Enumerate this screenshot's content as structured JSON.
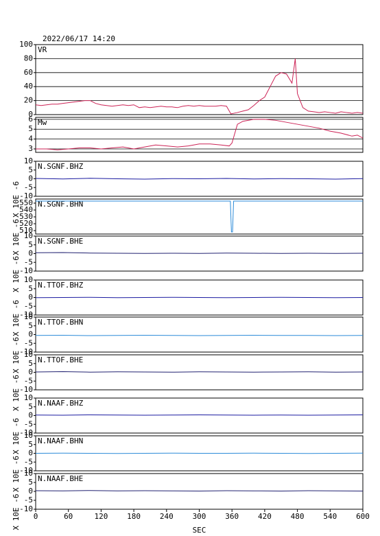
{
  "chart_data": [
    {
      "type": "line",
      "title": "2022/06/17 14:20",
      "xlim": [
        0,
        600
      ],
      "ylim": [
        0,
        100
      ],
      "yticks": [
        0,
        20,
        40,
        60,
        80,
        100
      ],
      "grid": true,
      "x": [
        0,
        10,
        20,
        30,
        40,
        50,
        60,
        70,
        80,
        90,
        100,
        110,
        120,
        130,
        140,
        150,
        160,
        170,
        180,
        190,
        200,
        210,
        220,
        230,
        240,
        250,
        260,
        270,
        280,
        290,
        300,
        310,
        320,
        330,
        340,
        350,
        358,
        370,
        380,
        390,
        400,
        410,
        420,
        430,
        440,
        450,
        460,
        470,
        476,
        480,
        490,
        500,
        510,
        520,
        530,
        540,
        550,
        560,
        570,
        580,
        590,
        600
      ],
      "series": [
        {
          "name": "VR",
          "color": "#cc2255",
          "values": [
            14,
            13,
            14,
            15,
            15,
            16,
            17,
            18,
            19,
            20,
            20,
            16,
            14,
            13,
            12,
            13,
            14,
            13,
            14,
            10,
            11,
            10,
            11,
            12,
            11,
            11,
            10,
            12,
            13,
            12,
            13,
            12,
            12,
            12,
            13,
            12,
            1,
            3,
            5,
            7,
            13,
            20,
            25,
            40,
            55,
            60,
            58,
            45,
            80,
            30,
            10,
            5,
            4,
            3,
            4,
            3,
            2,
            4,
            3,
            2,
            3,
            2
          ]
        }
      ]
    },
    {
      "type": "line",
      "xlim": [
        0,
        600
      ],
      "ylim": [
        2.65,
        6.2
      ],
      "yticks": [
        3,
        4,
        5,
        6
      ],
      "grid": true,
      "x": [
        0,
        20,
        40,
        60,
        80,
        100,
        120,
        140,
        160,
        180,
        200,
        220,
        240,
        260,
        280,
        300,
        320,
        340,
        355,
        360,
        370,
        380,
        400,
        420,
        440,
        460,
        480,
        500,
        520,
        540,
        560,
        580,
        590,
        600
      ],
      "series": [
        {
          "name": "Mw",
          "color": "#cc2255",
          "values": [
            3.0,
            3.0,
            2.9,
            3.0,
            3.1,
            3.1,
            3.0,
            3.1,
            3.2,
            3.0,
            3.2,
            3.4,
            3.3,
            3.2,
            3.3,
            3.5,
            3.5,
            3.4,
            3.3,
            3.6,
            5.5,
            5.8,
            6.0,
            6.0,
            5.9,
            5.7,
            5.5,
            5.3,
            5.1,
            4.8,
            4.6,
            4.3,
            4.4,
            4.1
          ]
        }
      ]
    },
    {
      "type": "line",
      "xlim": [
        0,
        600
      ],
      "ylim": [
        -10,
        10
      ],
      "yticks": [
        -10,
        -5,
        0,
        5,
        10
      ],
      "ylabel": "X 10E -6",
      "x": [
        0,
        50,
        100,
        150,
        200,
        250,
        300,
        350,
        400,
        450,
        500,
        550,
        600
      ],
      "series": [
        {
          "name": "N.SGNF.BHZ",
          "color": "#1a1aa0",
          "values": [
            0.2,
            -0.1,
            0.3,
            0,
            -0.2,
            0.1,
            0,
            0.2,
            -0.1,
            0.1,
            0,
            -0.2,
            0.1
          ]
        }
      ]
    },
    {
      "type": "line",
      "xlim": [
        0,
        600
      ],
      "ylim": [
        505,
        556
      ],
      "yticks": [
        510,
        520,
        530,
        540,
        550
      ],
      "ylabel": "X 10E -6",
      "x": [
        0,
        50,
        100,
        150,
        200,
        250,
        300,
        350,
        357,
        359,
        361,
        363,
        400,
        450,
        500,
        550,
        600
      ],
      "series": [
        {
          "name": "N.SGNF.BHN",
          "color": "#2a8ad8",
          "values": [
            553,
            553,
            553,
            553,
            553,
            553,
            553,
            553,
            553,
            508,
            508,
            553,
            553,
            553,
            553,
            553,
            553
          ]
        }
      ]
    },
    {
      "type": "line",
      "xlim": [
        0,
        600
      ],
      "ylim": [
        -10,
        10
      ],
      "yticks": [
        -10,
        -5,
        0,
        5,
        10
      ],
      "ylabel": "X 10E -6",
      "x": [
        0,
        50,
        100,
        150,
        200,
        250,
        300,
        350,
        400,
        450,
        500,
        550,
        600
      ],
      "series": [
        {
          "name": "N.SGNF.BHE",
          "color": "#202070",
          "values": [
            0.5,
            0.6,
            0.3,
            0.2,
            0.1,
            0.2,
            0.1,
            0.3,
            0.2,
            0.1,
            0.2,
            0.1,
            0.2
          ]
        }
      ]
    },
    {
      "type": "line",
      "xlim": [
        0,
        600
      ],
      "ylim": [
        -10,
        10
      ],
      "yticks": [
        -10,
        -5,
        0,
        5,
        10
      ],
      "ylabel": "X 10E -6",
      "x": [
        0,
        50,
        100,
        150,
        200,
        250,
        300,
        350,
        400,
        450,
        500,
        550,
        600
      ],
      "series": [
        {
          "name": "N.TTOF.BHZ",
          "color": "#1a1aa0",
          "values": [
            -0.1,
            0,
            0.1,
            -0.1,
            0,
            0.1,
            0,
            -0.1,
            0,
            0.1,
            0,
            -0.1,
            0
          ]
        }
      ]
    },
    {
      "type": "line",
      "xlim": [
        0,
        600
      ],
      "ylim": [
        -10,
        10
      ],
      "yticks": [
        -10,
        -5,
        0,
        5,
        10
      ],
      "ylabel": "X 10E -6",
      "x": [
        0,
        50,
        100,
        150,
        200,
        250,
        300,
        350,
        400,
        450,
        500,
        550,
        600
      ],
      "series": [
        {
          "name": "N.TTOF.BHN",
          "color": "#2a8ad8",
          "values": [
            -0.5,
            -0.4,
            -0.6,
            -0.5,
            -0.4,
            -0.5,
            -0.6,
            -0.5,
            -0.4,
            -0.5,
            -0.5,
            -0.6,
            -0.5
          ]
        }
      ]
    },
    {
      "type": "line",
      "xlim": [
        0,
        600
      ],
      "ylim": [
        -10,
        10
      ],
      "yticks": [
        -10,
        -5,
        0,
        5,
        10
      ],
      "ylabel": "X 10E -6",
      "x": [
        0,
        50,
        100,
        150,
        200,
        250,
        300,
        350,
        400,
        450,
        500,
        550,
        600
      ],
      "series": [
        {
          "name": "N.TTOF.BHE",
          "color": "#202070",
          "values": [
            0.2,
            0.4,
            0.1,
            0.3,
            0.2,
            0.1,
            0.3,
            0.2,
            0.1,
            0.2,
            0.3,
            0.1,
            0.2
          ]
        }
      ]
    },
    {
      "type": "line",
      "xlim": [
        0,
        600
      ],
      "ylim": [
        -10,
        10
      ],
      "yticks": [
        -10,
        -5,
        0,
        5,
        10
      ],
      "ylabel": "X 10E -6",
      "x": [
        0,
        50,
        100,
        150,
        200,
        250,
        300,
        350,
        400,
        450,
        500,
        550,
        600
      ],
      "series": [
        {
          "name": "N.NAAF.BHZ",
          "color": "#1a1aa0",
          "values": [
            0.3,
            0.2,
            0.4,
            0.3,
            0.2,
            0.3,
            0.4,
            0.3,
            0.2,
            0.3,
            0.2,
            0.3,
            0.4
          ]
        }
      ]
    },
    {
      "type": "line",
      "xlim": [
        0,
        600
      ],
      "ylim": [
        -10,
        10
      ],
      "yticks": [
        -10,
        -5,
        0,
        5,
        10
      ],
      "ylabel": "X 10E -6",
      "x": [
        0,
        50,
        100,
        150,
        200,
        250,
        300,
        350,
        400,
        450,
        500,
        550,
        600
      ],
      "series": [
        {
          "name": "N.NAAF.BHN",
          "color": "#2a8ad8",
          "values": [
            0,
            0.1,
            0,
            -0.1,
            0,
            0.1,
            0,
            0,
            0.1,
            0,
            -0.1,
            0,
            0.1
          ]
        }
      ]
    },
    {
      "type": "line",
      "xlim": [
        0,
        600
      ],
      "ylim": [
        -10,
        10
      ],
      "yticks": [
        -10,
        -5,
        0,
        5,
        10
      ],
      "ylabel": "X 10E -6",
      "xticks": [
        0,
        60,
        120,
        180,
        240,
        300,
        360,
        420,
        480,
        540,
        600
      ],
      "xlabel": "SEC",
      "x": [
        0,
        50,
        100,
        150,
        200,
        250,
        300,
        350,
        400,
        450,
        500,
        550,
        600
      ],
      "series": [
        {
          "name": "N.NAAF.BHE",
          "color": "#202070",
          "values": [
            0.4,
            0.3,
            0.5,
            0.3,
            0.4,
            0.3,
            0.2,
            0.4,
            0.3,
            0.2,
            0.4,
            0.3,
            0.2
          ]
        }
      ]
    }
  ]
}
